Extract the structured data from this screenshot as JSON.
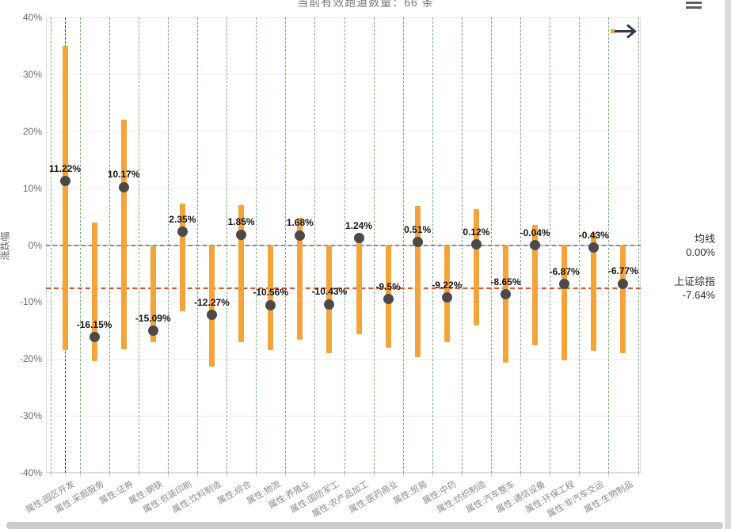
{
  "header": {
    "title": "当前有效跑道数量：66 条",
    "menu_icon": "hamburger-icon",
    "nav_icon": "arrow-right-icon"
  },
  "chart_data": {
    "type": "bar",
    "subtype": "range-bar-with-dot",
    "categories": [
      "属性:园区开发",
      "属性:采掘服务",
      "属性:证券",
      "属性:钢铁",
      "属性:包装印刷",
      "属性:饮料制造",
      "属性:综合",
      "属性:物流",
      "属性:养殖业",
      "属性:国防军工",
      "属性:农产品加工",
      "属性:医药商业",
      "属性:贸易",
      "属性:中药",
      "属性:纺织制造",
      "属性:汽车整车",
      "属性:通信设备",
      "属性:环保工程",
      "属性:非汽车交运",
      "属性:生物制品"
    ],
    "series": [
      {
        "name": "current",
        "values": [
          11.22,
          -16.15,
          10.17,
          -15.09,
          2.35,
          -12.27,
          1.85,
          -10.56,
          1.68,
          -10.43,
          1.24,
          -9.5,
          0.51,
          -9.22,
          0.12,
          -8.65,
          -0.04,
          -6.87,
          -0.43,
          -6.77
        ]
      },
      {
        "name": "range_high",
        "values": [
          35.0,
          3.9,
          22.1,
          -0.2,
          7.3,
          -0.1,
          7.0,
          0.0,
          4.8,
          0.0,
          2.0,
          0.0,
          6.9,
          0.0,
          6.4,
          0.0,
          3.6,
          0.1,
          2.2,
          0.0
        ]
      },
      {
        "name": "range_low",
        "values": [
          -18.5,
          -20.4,
          -18.3,
          -17.0,
          -11.6,
          -21.4,
          -17.0,
          -18.5,
          -16.6,
          -19.0,
          -15.6,
          -18.0,
          -19.7,
          -17.0,
          -14.1,
          -20.6,
          -17.6,
          -20.3,
          -18.6,
          -19.0
        ]
      }
    ],
    "value_labels": [
      "11.22%",
      "-16.15%",
      "10.17%",
      "-15.09%",
      "2.35%",
      "-12.27%",
      "1.85%",
      "-10.56%",
      "1.68%",
      "-10.43%",
      "1.24%",
      "-9.5%",
      "0.51%",
      "-9.22%",
      "0.12%",
      "-8.65%",
      "-0.04%",
      "-6.87%",
      "-0.43%",
      "-6.77%"
    ],
    "ylabel": "涨跌幅",
    "ylim": [
      -40,
      40
    ],
    "ytick_values": [
      40,
      30,
      20,
      10,
      0,
      -10,
      -20,
      -30,
      -40
    ],
    "ytick_labels": [
      "40%",
      "30%",
      "20%",
      "10%",
      "0%",
      "-10%",
      "-20%",
      "-30%",
      "-40%"
    ],
    "grid": "on",
    "ref_lines": [
      {
        "name": "均线",
        "value": 0,
        "value_label": "0.00%",
        "style": "gray-dashed"
      },
      {
        "name": "上证综指",
        "value": -7.64,
        "value_label": "-7.64%",
        "style": "red-dashed"
      }
    ],
    "highlight_category_index": 0
  },
  "colors": {
    "bar": "#F5A43B",
    "dot": "#4A4A4A",
    "vgrid_green": "#57A257",
    "index_line_red": "#E4512E",
    "mean_line_gray": "#8A8A8A",
    "highlight_dash": "#3A3A3A"
  }
}
